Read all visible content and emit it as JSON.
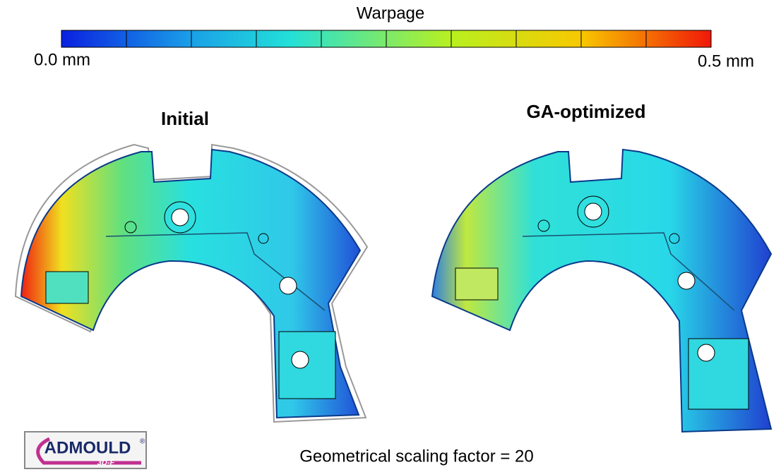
{
  "colorbar": {
    "title": "Warpage",
    "min_label": "0.0 mm",
    "max_label": "0.5 mm"
  },
  "panels": [
    {
      "title": "Initial"
    },
    {
      "title": "GA-optimized"
    }
  ],
  "footer": {
    "caption": "Geometrical scaling factor = 20"
  },
  "logo": {
    "name": "ADMOULD",
    "registered": "®",
    "sub": "3D-F"
  }
}
